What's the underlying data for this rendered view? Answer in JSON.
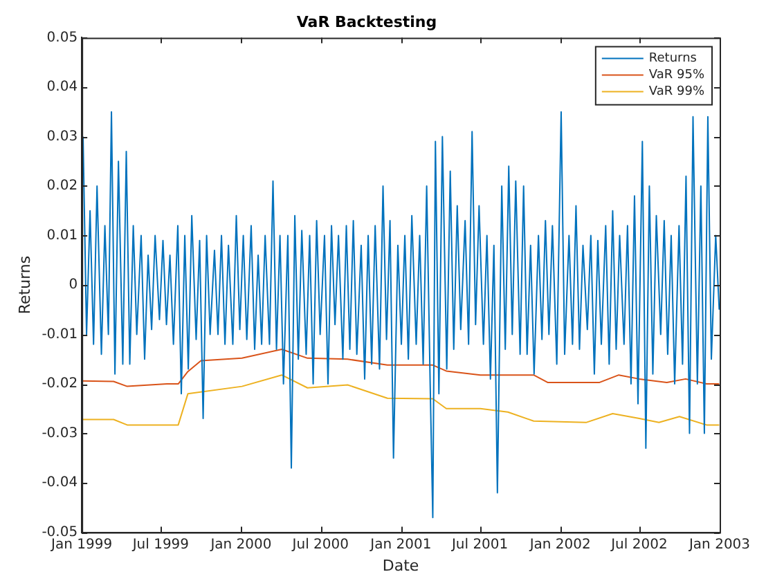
{
  "chart_data": {
    "type": "line",
    "title": "VaR Backtesting",
    "xlabel": "Date",
    "ylabel": "Returns",
    "xlim": [
      "1999-01-01",
      "2003-01-01"
    ],
    "xticks": [
      {
        "value": "1999-01-01",
        "label": "Jan 1999"
      },
      {
        "value": "1999-07-01",
        "label": "Jul 1999"
      },
      {
        "value": "2000-01-01",
        "label": "Jan 2000"
      },
      {
        "value": "2000-07-01",
        "label": "Jul 2000"
      },
      {
        "value": "2001-01-01",
        "label": "Jan 2001"
      },
      {
        "value": "2001-07-01",
        "label": "Jul 2001"
      },
      {
        "value": "2002-01-01",
        "label": "Jan 2002"
      },
      {
        "value": "2002-07-01",
        "label": "Jul 2002"
      },
      {
        "value": "2003-01-01",
        "label": "Jan 2003"
      }
    ],
    "ylim": [
      -0.05,
      0.05
    ],
    "yticks": [
      -0.05,
      -0.04,
      -0.03,
      -0.02,
      -0.01,
      0,
      0.01,
      0.02,
      0.03,
      0.04,
      0.05
    ],
    "grid": false,
    "legend": "top right",
    "marker": "none",
    "line_style": "solid",
    "series": [
      {
        "name": "Returns",
        "color": "#0072bd",
        "x": [
          "1999-01-04",
          "1999-01-12",
          "1999-01-20",
          "1999-01-28",
          "1999-02-05",
          "1999-02-15",
          "1999-02-23",
          "1999-03-03",
          "1999-03-10",
          "1999-03-18",
          "1999-03-26",
          "1999-04-05",
          "1999-04-13",
          "1999-04-21",
          "1999-04-29",
          "1999-05-07",
          "1999-05-17",
          "1999-05-25",
          "1999-06-02",
          "1999-06-10",
          "1999-06-18",
          "1999-06-28",
          "1999-07-06",
          "1999-07-14",
          "1999-07-22",
          "1999-07-30",
          "1999-08-09",
          "1999-08-17",
          "1999-08-25",
          "1999-09-02",
          "1999-09-10",
          "1999-09-20",
          "1999-09-28",
          "1999-10-06",
          "1999-10-14",
          "1999-10-22",
          "1999-11-01",
          "1999-11-09",
          "1999-11-17",
          "1999-11-25",
          "1999-12-03",
          "1999-12-13",
          "1999-12-21",
          "1999-12-29",
          "2000-01-06",
          "2000-01-14",
          "2000-01-24",
          "2000-02-01",
          "2000-02-09",
          "2000-02-17",
          "2000-02-25",
          "2000-03-06",
          "2000-03-14",
          "2000-03-22",
          "2000-03-30",
          "2000-04-07",
          "2000-04-17",
          "2000-04-25",
          "2000-05-03",
          "2000-05-11",
          "2000-05-19",
          "2000-05-29",
          "2000-06-06",
          "2000-06-14",
          "2000-06-22",
          "2000-06-30",
          "2000-07-10",
          "2000-07-18",
          "2000-07-26",
          "2000-08-03",
          "2000-08-11",
          "2000-08-21",
          "2000-08-29",
          "2000-09-06",
          "2000-09-14",
          "2000-09-22",
          "2000-10-02",
          "2000-10-10",
          "2000-10-18",
          "2000-10-26",
          "2000-11-03",
          "2000-11-13",
          "2000-11-21",
          "2000-11-29",
          "2000-12-07",
          "2000-12-15",
          "2000-12-25",
          "2001-01-02",
          "2001-01-10",
          "2001-01-18",
          "2001-01-26",
          "2001-02-05",
          "2001-02-13",
          "2001-02-21",
          "2001-03-01",
          "2001-03-09",
          "2001-03-15",
          "2001-03-21",
          "2001-03-29",
          "2001-04-06",
          "2001-04-16",
          "2001-04-24",
          "2001-05-02",
          "2001-05-10",
          "2001-05-18",
          "2001-05-28",
          "2001-06-05",
          "2001-06-13",
          "2001-06-21",
          "2001-06-29",
          "2001-07-09",
          "2001-07-17",
          "2001-07-25",
          "2001-08-02",
          "2001-08-10",
          "2001-08-20",
          "2001-08-28",
          "2001-09-05",
          "2001-09-13",
          "2001-09-21",
          "2001-10-01",
          "2001-10-09",
          "2001-10-17",
          "2001-10-25",
          "2001-11-02",
          "2001-11-12",
          "2001-11-20",
          "2001-11-28",
          "2001-12-06",
          "2001-12-14",
          "2001-12-24",
          "2002-01-03",
          "2002-01-11",
          "2002-01-21",
          "2002-01-29",
          "2002-02-06",
          "2002-02-14",
          "2002-02-22",
          "2002-03-04",
          "2002-03-12",
          "2002-03-20",
          "2002-03-28",
          "2002-04-05",
          "2002-04-15",
          "2002-04-23",
          "2002-05-01",
          "2002-05-09",
          "2002-05-17",
          "2002-05-27",
          "2002-06-04",
          "2002-06-12",
          "2002-06-20",
          "2002-06-28",
          "2002-07-08",
          "2002-07-16",
          "2002-07-24",
          "2002-08-01",
          "2002-08-09",
          "2002-08-19",
          "2002-08-27",
          "2002-09-04",
          "2002-09-12",
          "2002-09-20",
          "2002-09-30",
          "2002-10-08",
          "2002-10-16",
          "2002-10-24",
          "2002-11-01",
          "2002-11-11",
          "2002-11-19",
          "2002-11-27",
          "2002-12-05",
          "2002-12-13",
          "2002-12-23",
          "2002-12-31"
        ],
        "values": [
          0.03,
          -0.01,
          0.015,
          -0.012,
          0.02,
          -0.014,
          0.012,
          -0.01,
          0.035,
          -0.018,
          0.025,
          -0.016,
          0.027,
          -0.016,
          0.012,
          -0.01,
          0.01,
          -0.015,
          0.006,
          -0.009,
          0.01,
          -0.007,
          0.009,
          -0.008,
          0.006,
          -0.012,
          0.012,
          -0.022,
          0.01,
          -0.017,
          0.014,
          -0.011,
          0.009,
          -0.027,
          0.01,
          -0.01,
          0.007,
          -0.01,
          0.01,
          -0.012,
          0.008,
          -0.012,
          0.014,
          -0.009,
          0.01,
          -0.011,
          0.012,
          -0.013,
          0.006,
          -0.012,
          0.01,
          -0.012,
          0.021,
          -0.013,
          0.01,
          -0.02,
          0.01,
          -0.037,
          0.014,
          -0.015,
          0.011,
          -0.014,
          0.01,
          -0.02,
          0.013,
          -0.01,
          0.01,
          -0.02,
          0.012,
          -0.008,
          0.01,
          -0.015,
          0.012,
          -0.013,
          0.013,
          -0.014,
          0.008,
          -0.019,
          0.01,
          -0.016,
          0.012,
          -0.017,
          0.02,
          -0.011,
          0.013,
          -0.035,
          0.008,
          -0.012,
          0.01,
          -0.015,
          0.014,
          -0.012,
          0.01,
          -0.016,
          0.02,
          -0.02,
          -0.047,
          0.029,
          -0.022,
          0.03,
          -0.017,
          0.023,
          -0.013,
          0.016,
          -0.009,
          0.013,
          -0.012,
          0.031,
          -0.008,
          0.016,
          -0.012,
          0.01,
          -0.019,
          0.008,
          -0.042,
          0.02,
          -0.013,
          0.024,
          -0.01,
          0.021,
          -0.014,
          0.02,
          -0.014,
          0.008,
          -0.018,
          0.01,
          -0.011,
          0.013,
          -0.01,
          0.012,
          -0.016,
          0.035,
          -0.014,
          0.01,
          -0.012,
          0.016,
          -0.013,
          0.008,
          -0.009,
          0.01,
          -0.018,
          0.009,
          -0.012,
          0.012,
          -0.016,
          0.015,
          -0.013,
          0.01,
          -0.012,
          0.012,
          -0.02,
          0.018,
          -0.024,
          0.029,
          -0.033,
          0.02,
          -0.018,
          0.014,
          -0.01,
          0.013,
          -0.014,
          0.01,
          -0.02,
          0.012,
          -0.016,
          0.022,
          -0.03,
          0.034,
          -0.02,
          0.02,
          -0.03,
          0.034,
          -0.015,
          0.01,
          -0.005
        ]
      },
      {
        "name": "VaR 95%",
        "color": "#d95319",
        "x": [
          "1999-01-04",
          "1999-03-15",
          "1999-04-15",
          "1999-07-15",
          "1999-08-10",
          "1999-09-01",
          "1999-10-01",
          "2000-01-03",
          "2000-04-03",
          "2000-06-01",
          "2000-09-01",
          "2000-12-01",
          "2001-03-15",
          "2001-04-15",
          "2001-07-02",
          "2001-11-01",
          "2001-12-03",
          "2002-04-01",
          "2002-05-15",
          "2002-07-01",
          "2002-09-02",
          "2002-10-15",
          "2002-12-02",
          "2002-12-31"
        ],
        "values": [
          -0.0194,
          -0.0195,
          -0.0205,
          -0.02,
          -0.02,
          -0.0175,
          -0.0153,
          -0.0148,
          -0.013,
          -0.0148,
          -0.015,
          -0.0162,
          -0.0162,
          -0.0174,
          -0.0182,
          -0.0182,
          -0.0197,
          -0.0197,
          -0.0182,
          -0.019,
          -0.0197,
          -0.019,
          -0.02,
          -0.02
        ]
      },
      {
        "name": "VaR 99%",
        "color": "#edb120",
        "x": [
          "1999-01-04",
          "1999-03-15",
          "1999-04-15",
          "1999-06-01",
          "1999-08-10",
          "1999-09-01",
          "2000-01-03",
          "2000-04-03",
          "2000-06-01",
          "2000-09-01",
          "2000-12-01",
          "2001-03-15",
          "2001-04-15",
          "2001-07-02",
          "2001-09-03",
          "2001-11-01",
          "2002-03-01",
          "2002-05-01",
          "2002-07-01",
          "2002-08-15",
          "2002-10-01",
          "2002-12-02",
          "2002-12-31"
        ],
        "values": [
          -0.0272,
          -0.0272,
          -0.0283,
          -0.0283,
          -0.0283,
          -0.022,
          -0.0205,
          -0.0182,
          -0.0208,
          -0.0202,
          -0.0229,
          -0.023,
          -0.025,
          -0.025,
          -0.0257,
          -0.0275,
          -0.0278,
          -0.026,
          -0.027,
          -0.0278,
          -0.0266,
          -0.0283,
          -0.0283
        ]
      }
    ]
  }
}
